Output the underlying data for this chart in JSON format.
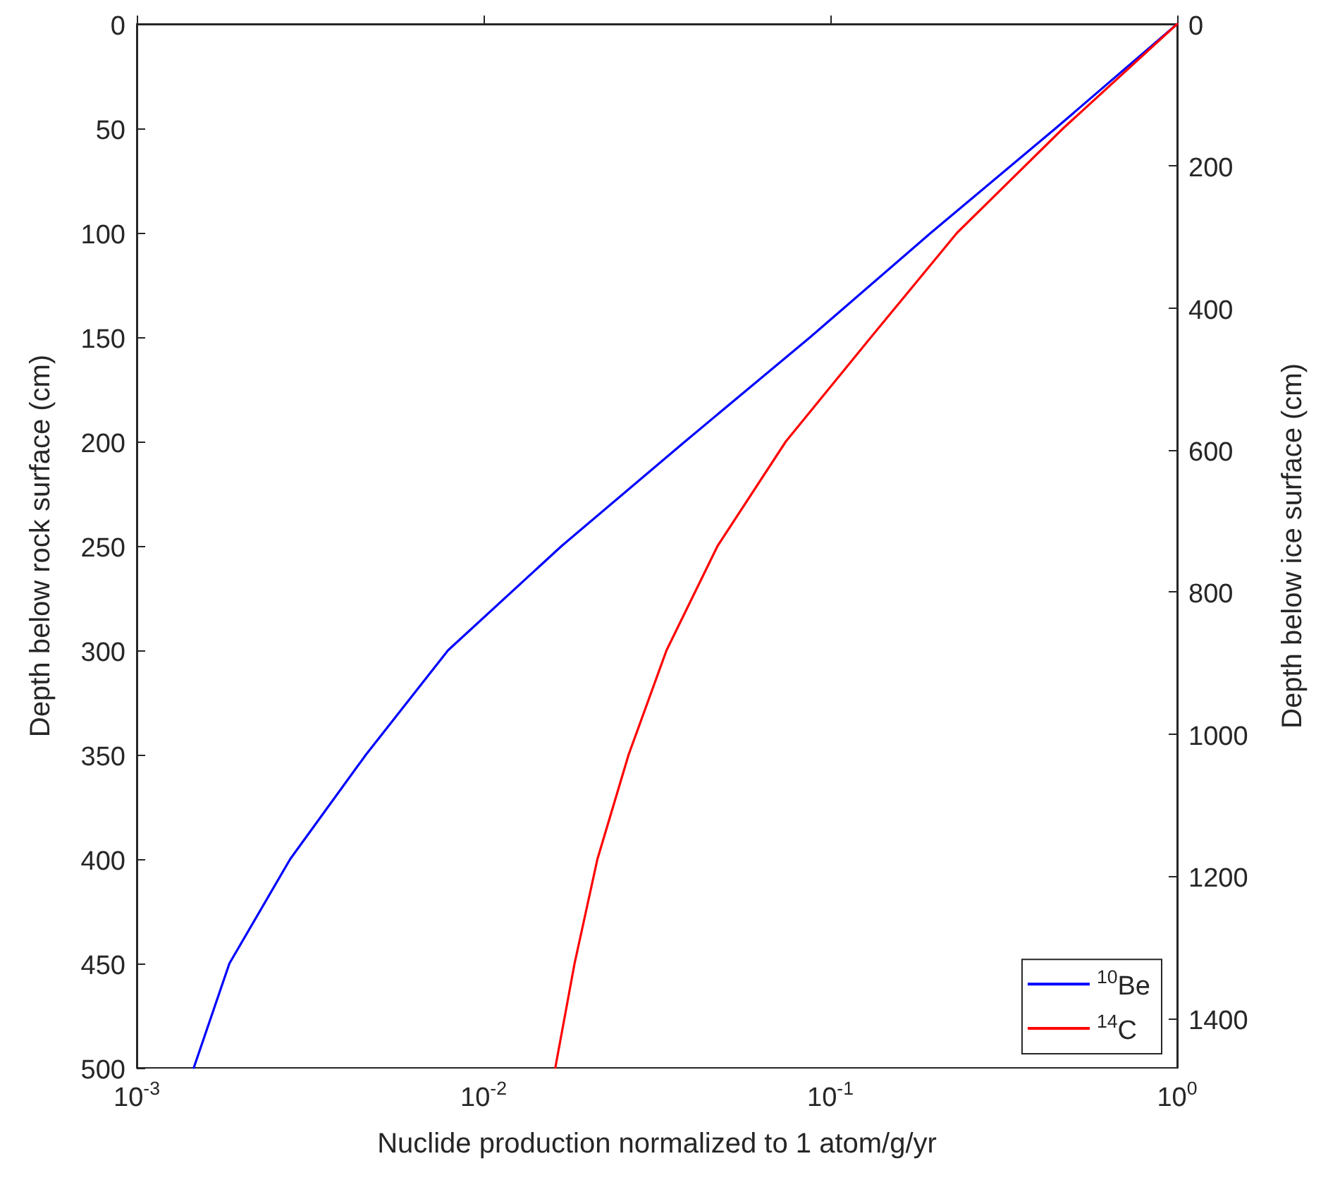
{
  "chart_data": {
    "type": "line",
    "xlabel": "Nuclide production normalized to 1 atom/g/yr",
    "ylabel": "Depth below rock surface (cm)",
    "y2label": "Depth below ice surface (cm)",
    "log": "x",
    "grid": false,
    "legend": "bottom right",
    "marker": "none",
    "line_style": "solid",
    "xlim": [
      0.001,
      1
    ],
    "xticks": [
      {
        "value": 0.001,
        "label": "10$^{-3}$"
      },
      {
        "value": 0.01,
        "label": "10$^{-2}$"
      },
      {
        "value": 0.1,
        "label": "10$^{-1}$"
      },
      {
        "value": 1,
        "label": "10$^{0}$"
      }
    ],
    "ylim": [
      500,
      0
    ],
    "yticks": [
      0,
      50,
      100,
      150,
      200,
      250,
      300,
      350,
      400,
      450,
      500
    ],
    "y2lim": [
      1470,
      0
    ],
    "y2ticks": [
      0,
      200,
      400,
      600,
      800,
      1000,
      1200,
      1400
    ],
    "series": [
      {
        "name": "$^{10}$Be",
        "color": "#0000ff",
        "x": [
          1,
          0.446,
          0.195,
          0.0875,
          0.0381,
          0.0168,
          0.0079,
          0.00458,
          0.00277,
          0.00185,
          0.00146
        ],
        "values": [
          0,
          50,
          100,
          150,
          200,
          250,
          300,
          350,
          400,
          450,
          500
        ]
      },
      {
        "name": "$^{14}$C",
        "color": "#ff0000",
        "x": [
          1,
          0.469,
          0.232,
          0.131,
          0.0744,
          0.0473,
          0.0337,
          0.0262,
          0.0213,
          0.0183,
          0.0161
        ],
        "values": [
          0,
          50,
          100,
          150,
          200,
          250,
          300,
          350,
          400,
          450,
          500
        ]
      }
    ]
  }
}
